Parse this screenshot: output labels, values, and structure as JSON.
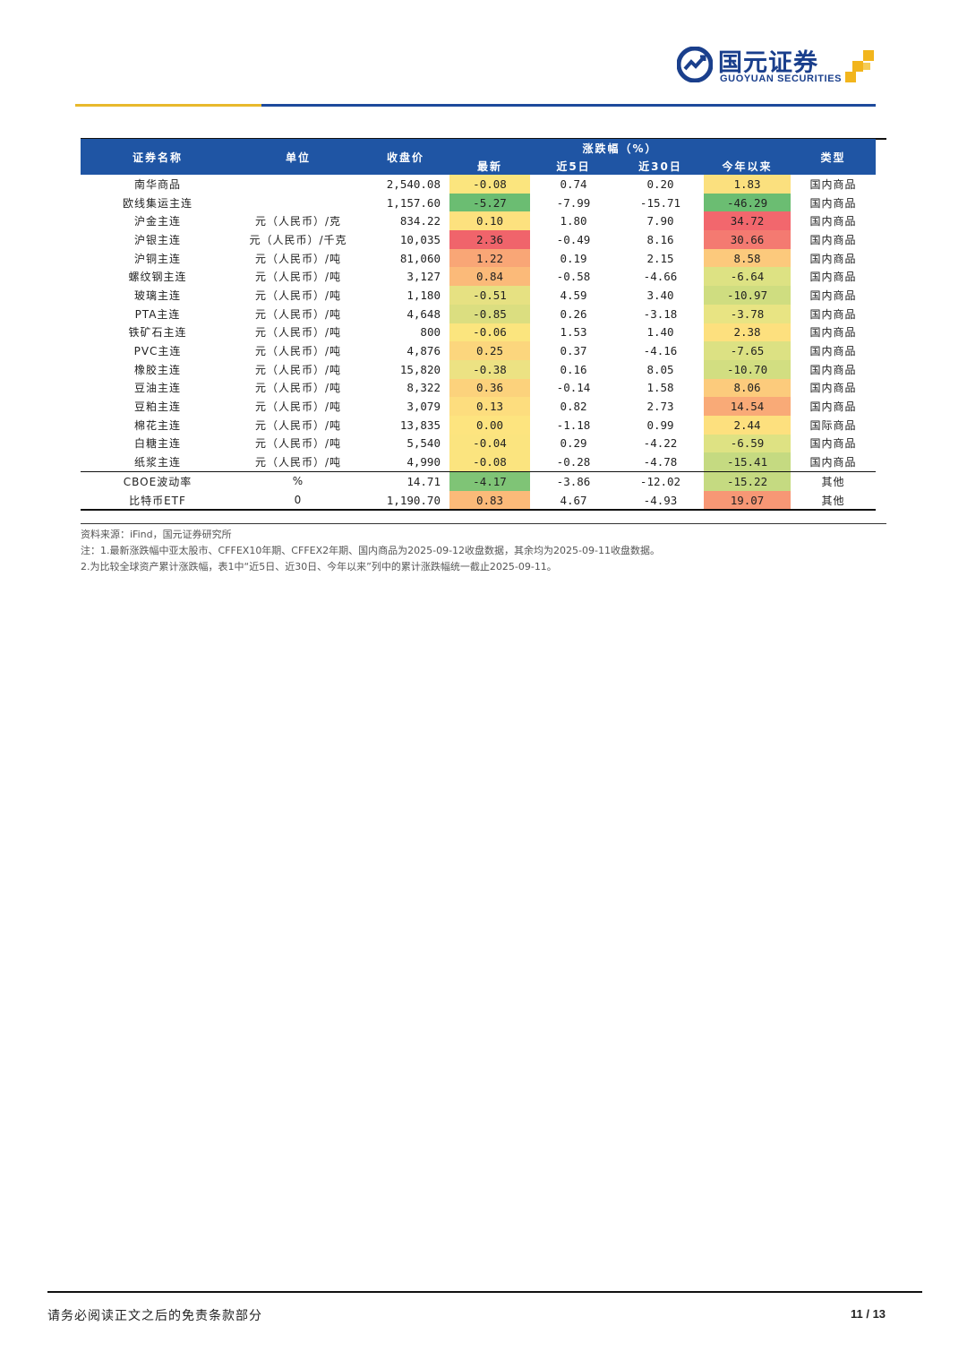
{
  "header": {
    "logo_cn": "国元证券",
    "logo_en": "GUOYUAN SECURITIES"
  },
  "table": {
    "headers": {
      "name": "证券名称",
      "unit": "单位",
      "close": "收盘价",
      "change_group": "涨跌幅（%）",
      "latest": "最新",
      "d5": "近5日",
      "d30": "近30日",
      "ytd": "今年以来",
      "type": "类型"
    },
    "rows": [
      {
        "name": "南华商品",
        "unit": "",
        "close": "2,540.08",
        "latest": "-0.08",
        "d5": "0.74",
        "d30": "0.20",
        "ytd": "1.83",
        "type": "国内商品",
        "latest_color": "#fbe57e",
        "ytd_color": "#fbe07e"
      },
      {
        "name": "欧线集运主连",
        "unit": "",
        "close": "1,157.60",
        "latest": "-5.27",
        "d5": "-7.99",
        "d30": "-15.71",
        "ytd": "-46.29",
        "type": "国内商品",
        "latest_color": "#6bbd72",
        "ytd_color": "#6bbd72"
      },
      {
        "name": "沪金主连",
        "unit": "元（人民币）/克",
        "close": "834.22",
        "latest": "0.10",
        "d5": "1.80",
        "d30": "7.90",
        "ytd": "34.72",
        "type": "国内商品",
        "latest_color": "#fde17e",
        "ytd_color": "#f2676d"
      },
      {
        "name": "沪银主连",
        "unit": "元（人民币）/千克",
        "close": "10,035",
        "latest": "2.36",
        "d5": "-0.49",
        "d30": "8.16",
        "ytd": "30.66",
        "type": "国内商品",
        "latest_color": "#f0646b",
        "ytd_color": "#f47a71"
      },
      {
        "name": "沪铜主连",
        "unit": "元（人民币）/吨",
        "close": "81,060",
        "latest": "1.22",
        "d5": "0.19",
        "d30": "2.15",
        "ytd": "8.58",
        "type": "国内商品",
        "latest_color": "#f9a676",
        "ytd_color": "#fcc97c"
      },
      {
        "name": "螺纹钢主连",
        "unit": "元（人民币）/吨",
        "close": "3,127",
        "latest": "0.84",
        "d5": "-0.58",
        "d30": "-4.66",
        "ytd": "-6.64",
        "type": "国内商品",
        "latest_color": "#fbba79",
        "ytd_color": "#dde283"
      },
      {
        "name": "玻璃主连",
        "unit": "元（人民币）/吨",
        "close": "1,180",
        "latest": "-0.51",
        "d5": "4.59",
        "d30": "3.40",
        "ytd": "-10.97",
        "type": "国内商品",
        "latest_color": "#e6e182",
        "ytd_color": "#cfdd80"
      },
      {
        "name": "PTA主连",
        "unit": "元（人民币）/吨",
        "close": "4,648",
        "latest": "-0.85",
        "d5": "0.26",
        "d30": "-3.18",
        "ytd": "-3.78",
        "type": "国内商品",
        "latest_color": "#dbde80",
        "ytd_color": "#e8e483"
      },
      {
        "name": "铁矿石主连",
        "unit": "元（人民币）/吨",
        "close": "800",
        "latest": "-0.06",
        "d5": "1.53",
        "d30": "1.40",
        "ytd": "2.38",
        "type": "国内商品",
        "latest_color": "#fbe57e",
        "ytd_color": "#fde07e"
      },
      {
        "name": "PVC主连",
        "unit": "元（人民币）/吨",
        "close": "4,876",
        "latest": "0.25",
        "d5": "0.37",
        "d30": "-4.16",
        "ytd": "-7.65",
        "type": "国内商品",
        "latest_color": "#fcd67d",
        "ytd_color": "#dce183"
      },
      {
        "name": "橡胶主连",
        "unit": "元（人民币）/吨",
        "close": "15,820",
        "latest": "-0.38",
        "d5": "0.16",
        "d30": "8.05",
        "ytd": "-10.70",
        "type": "国内商品",
        "latest_color": "#ece283",
        "ytd_color": "#d2de81"
      },
      {
        "name": "豆油主连",
        "unit": "元（人民币）/吨",
        "close": "8,322",
        "latest": "0.36",
        "d5": "-0.14",
        "d30": "1.58",
        "ytd": "8.06",
        "type": "国内商品",
        "latest_color": "#fcd27c",
        "ytd_color": "#fccb7c"
      },
      {
        "name": "豆粕主连",
        "unit": "元（人民币）/吨",
        "close": "3,079",
        "latest": "0.13",
        "d5": "0.82",
        "d30": "2.73",
        "ytd": "14.54",
        "type": "国内商品",
        "latest_color": "#fddd7e",
        "ytd_color": "#f9aa77"
      },
      {
        "name": "棉花主连",
        "unit": "元（人民币）/吨",
        "close": "13,835",
        "latest": "0.00",
        "d5": "-1.18",
        "d30": "0.99",
        "ytd": "2.44",
        "type": "国际商品",
        "latest_color": "#fde47f",
        "ytd_color": "#fde07e"
      },
      {
        "name": "白糖主连",
        "unit": "元（人民币）/吨",
        "close": "5,540",
        "latest": "-0.04",
        "d5": "0.29",
        "d30": "-4.22",
        "ytd": "-6.59",
        "type": "国内商品",
        "latest_color": "#fbe47f",
        "ytd_color": "#dee283"
      },
      {
        "name": "纸浆主连",
        "unit": "元（人民币）/吨",
        "close": "4,990",
        "latest": "-0.08",
        "d5": "-0.28",
        "d30": "-4.78",
        "ytd": "-15.41",
        "type": "国内商品",
        "latest_color": "#fbe47f",
        "ytd_color": "#c5da81"
      },
      {
        "name": "CBOE波动率",
        "unit": "%",
        "close": "14.71",
        "latest": "-4.17",
        "d5": "-3.86",
        "d30": "-12.02",
        "ytd": "-15.22",
        "type": "其他",
        "latest_color": "#7fc476",
        "ytd_color": "#c5da81"
      },
      {
        "name": "比特币ETF",
        "unit": "0",
        "close": "1,190.70",
        "latest": "0.83",
        "d5": "4.67",
        "d30": "-4.93",
        "ytd": "19.07",
        "type": "其他",
        "latest_color": "#fbba79",
        "ytd_color": "#f79775"
      }
    ]
  },
  "notes": {
    "source": "资料来源：iFind，国元证券研究所",
    "note1": "注：1.最新涨跌幅中亚太股市、CFFEX10年期、CFFEX2年期、国内商品为2025-09-12收盘数据，其余均为2025-09-11收盘数据。",
    "note2": "2.为比较全球资产累计涨跌幅，表1中“近5日、近30日、今年以来”列中的累计涨跌幅统一截止2025-09-11。"
  },
  "footer": {
    "disclaimer": "请务必阅读正文之后的免责条款部分",
    "page": "11 / 13"
  }
}
